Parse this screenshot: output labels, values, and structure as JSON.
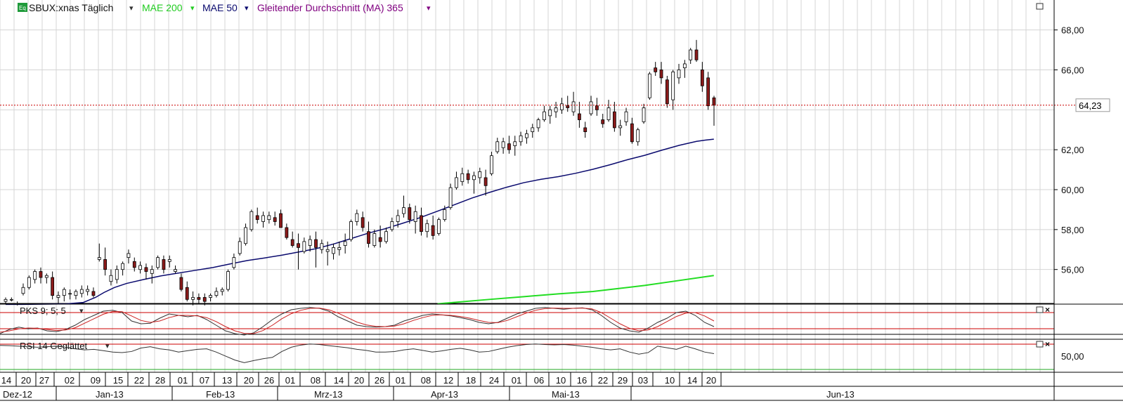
{
  "header": {
    "symbol_icon": "Eq",
    "symbol": "SBUX:xnas Täglich",
    "dropdown_icon": "▾",
    "ma200_label": "MAE 200",
    "ma50_label": "MAE 50",
    "ma365_label": "Gleitender Durchschnitt (MA) 365",
    "maximize_icon": "□"
  },
  "colors": {
    "background": "#ffffff",
    "grid": "#d4d4d4",
    "candle_up": "#ffffff",
    "candle_down": "#8b1a1a",
    "candle_wick": "#000000",
    "ma50": "#0a0a6e",
    "ma200": "#22dd22",
    "ma365_label": "#800080",
    "price_line": "#cc0000",
    "osc_black": "#333333",
    "osc_red": "#cc2222",
    "level_line": "#cc0000"
  },
  "price_label": "64,23",
  "y_axis_labels": [
    "68,00",
    "66,00",
    "62,00",
    "60,00",
    "58,00",
    "56,00"
  ],
  "pks_panel": {
    "title": "PKS 9; 5; 5",
    "dropdown_icon": "▾",
    "icons": [
      "□",
      "×"
    ]
  },
  "rsi_panel": {
    "title": "RSI 14 Geglättet",
    "dropdown_icon": "▾",
    "icons": [
      "□",
      "×"
    ],
    "label_50": "50,00"
  },
  "x_days": [
    "14",
    "20",
    "27",
    "02",
    "09",
    "15",
    "22",
    "28",
    "01",
    "07",
    "13",
    "20",
    "26",
    "01",
    "08",
    "14",
    "20",
    "26",
    "01",
    "08",
    "12",
    "18",
    "24",
    "01",
    "06",
    "10",
    "16",
    "22",
    "29",
    "03",
    "10",
    "14",
    "20"
  ],
  "x_months": [
    "Dez-12",
    "Jan-13",
    "Feb-13",
    "Mrz-13",
    "Apr-13",
    "Mai-13",
    "Jun-13"
  ],
  "chart_data": {
    "type": "candlestick",
    "symbol": "SBUX:xnas",
    "interval": "Täglich",
    "ylim": [
      54.3,
      69.5
    ],
    "last_price": 64.23,
    "candles": [
      [
        54.4,
        54.6,
        54.3,
        54.5
      ],
      [
        54.5,
        54.6,
        54.4,
        54.5
      ],
      [
        54.3,
        54.4,
        54.2,
        54.3
      ],
      [
        54.8,
        55.3,
        54.7,
        55.1
      ],
      [
        55.1,
        55.7,
        55.0,
        55.6
      ],
      [
        55.5,
        56.0,
        55.3,
        55.9
      ],
      [
        55.9,
        56.1,
        55.3,
        55.6
      ],
      [
        55.6,
        55.8,
        55.3,
        55.7
      ],
      [
        55.6,
        55.9,
        54.5,
        54.7
      ],
      [
        54.6,
        54.9,
        54.3,
        54.7
      ],
      [
        54.7,
        55.1,
        54.4,
        55.0
      ],
      [
        54.8,
        55.0,
        54.5,
        54.8
      ],
      [
        54.7,
        55.0,
        54.5,
        54.9
      ],
      [
        54.8,
        55.2,
        54.6,
        55.0
      ],
      [
        54.9,
        55.2,
        54.7,
        55.0
      ],
      [
        54.9,
        55.1,
        54.6,
        54.7
      ],
      [
        56.5,
        57.3,
        56.4,
        56.6
      ],
      [
        56.5,
        57.1,
        55.7,
        56.0
      ],
      [
        55.4,
        56.0,
        55.2,
        55.7
      ],
      [
        55.5,
        56.2,
        55.3,
        56.0
      ],
      [
        56.0,
        56.4,
        55.7,
        56.3
      ],
      [
        56.6,
        57.0,
        56.3,
        56.8
      ],
      [
        56.4,
        56.6,
        55.9,
        56.1
      ],
      [
        56.0,
        56.4,
        55.8,
        56.2
      ],
      [
        56.1,
        56.3,
        55.5,
        55.9
      ],
      [
        55.8,
        56.2,
        55.3,
        56.0
      ],
      [
        56.1,
        56.7,
        56.0,
        56.6
      ],
      [
        56.5,
        56.7,
        55.8,
        56.0
      ],
      [
        56.4,
        56.7,
        56.1,
        56.5
      ],
      [
        55.9,
        56.2,
        55.8,
        56.0
      ],
      [
        55.6,
        55.8,
        54.9,
        55.0
      ],
      [
        55.1,
        55.4,
        54.4,
        54.5
      ],
      [
        54.5,
        54.9,
        54.2,
        54.6
      ],
      [
        54.6,
        54.8,
        54.3,
        54.5
      ],
      [
        54.6,
        54.8,
        54.2,
        54.4
      ],
      [
        54.6,
        54.8,
        54.4,
        54.7
      ],
      [
        54.7,
        55.1,
        54.6,
        54.9
      ],
      [
        54.9,
        55.1,
        54.7,
        55.0
      ],
      [
        55.0,
        56.0,
        54.9,
        55.9
      ],
      [
        56.1,
        56.8,
        56.0,
        56.6
      ],
      [
        56.8,
        57.6,
        56.7,
        57.4
      ],
      [
        57.3,
        58.3,
        57.2,
        58.1
      ],
      [
        58.0,
        59.0,
        57.9,
        58.9
      ],
      [
        58.7,
        59.1,
        58.3,
        58.5
      ],
      [
        58.4,
        58.9,
        58.1,
        58.7
      ],
      [
        58.5,
        58.9,
        58.3,
        58.7
      ],
      [
        58.6,
        58.9,
        58.2,
        58.4
      ],
      [
        58.8,
        59.0,
        58.1,
        58.1
      ],
      [
        58.1,
        58.3,
        57.5,
        57.6
      ],
      [
        57.5,
        57.9,
        57.1,
        57.2
      ],
      [
        57.3,
        57.8,
        56.0,
        57.1
      ],
      [
        56.9,
        57.6,
        56.8,
        57.4
      ],
      [
        57.2,
        57.7,
        56.9,
        57.5
      ],
      [
        57.5,
        57.9,
        56.1,
        57.1
      ],
      [
        57.0,
        57.5,
        56.8,
        57.3
      ],
      [
        56.9,
        57.4,
        56.2,
        57.0
      ],
      [
        56.8,
        57.3,
        56.5,
        57.1
      ],
      [
        57.0,
        57.4,
        56.7,
        57.1
      ],
      [
        57.2,
        57.8,
        56.8,
        57.4
      ],
      [
        57.5,
        58.5,
        57.4,
        58.4
      ],
      [
        58.4,
        59.0,
        58.2,
        58.8
      ],
      [
        58.6,
        58.9,
        57.9,
        58.1
      ],
      [
        57.9,
        58.4,
        57.1,
        57.3
      ],
      [
        57.2,
        58.0,
        57.1,
        57.8
      ],
      [
        57.6,
        58.2,
        57.1,
        57.4
      ],
      [
        57.4,
        58.1,
        57.3,
        57.9
      ],
      [
        58.0,
        58.6,
        57.9,
        58.4
      ],
      [
        58.4,
        59.0,
        58.1,
        58.7
      ],
      [
        58.8,
        59.7,
        58.6,
        59.1
      ],
      [
        59.1,
        59.3,
        58.3,
        58.5
      ],
      [
        58.4,
        59.2,
        57.8,
        58.9
      ],
      [
        58.7,
        59.1,
        57.7,
        57.9
      ],
      [
        57.9,
        58.5,
        57.6,
        58.3
      ],
      [
        58.2,
        58.7,
        57.5,
        57.7
      ],
      [
        57.8,
        58.6,
        57.7,
        58.5
      ],
      [
        58.5,
        59.2,
        58.4,
        59.0
      ],
      [
        59.1,
        60.3,
        59.0,
        60.1
      ],
      [
        60.1,
        60.9,
        60.0,
        60.6
      ],
      [
        60.4,
        61.1,
        60.2,
        60.8
      ],
      [
        60.8,
        61.0,
        60.3,
        60.5
      ],
      [
        60.5,
        60.9,
        59.8,
        60.7
      ],
      [
        60.6,
        61.1,
        60.3,
        60.9
      ],
      [
        60.6,
        61.0,
        59.7,
        60.2
      ],
      [
        60.8,
        61.9,
        60.7,
        61.7
      ],
      [
        61.9,
        62.6,
        61.8,
        62.4
      ],
      [
        62.1,
        62.6,
        61.8,
        62.4
      ],
      [
        62.3,
        62.7,
        61.8,
        62.0
      ],
      [
        62.2,
        62.7,
        61.7,
        62.4
      ],
      [
        62.4,
        62.9,
        62.2,
        62.7
      ],
      [
        62.6,
        63.0,
        62.3,
        62.8
      ],
      [
        62.9,
        63.3,
        62.6,
        63.1
      ],
      [
        63.1,
        63.6,
        62.9,
        63.5
      ],
      [
        63.5,
        64.2,
        63.4,
        63.9
      ],
      [
        63.7,
        64.2,
        63.3,
        64.0
      ],
      [
        63.9,
        64.4,
        63.6,
        64.1
      ],
      [
        64.0,
        64.6,
        63.8,
        64.3
      ],
      [
        64.2,
        64.7,
        63.9,
        64.1
      ],
      [
        63.9,
        64.9,
        63.7,
        64.4
      ],
      [
        63.8,
        64.4,
        63.1,
        63.5
      ],
      [
        63.1,
        63.4,
        62.6,
        62.9
      ],
      [
        63.8,
        64.7,
        63.7,
        64.4
      ],
      [
        64.2,
        64.6,
        63.7,
        64.0
      ],
      [
        63.5,
        63.8,
        63.1,
        63.3
      ],
      [
        63.5,
        64.5,
        63.4,
        64.1
      ],
      [
        63.9,
        64.4,
        62.9,
        63.1
      ],
      [
        63.1,
        63.5,
        62.7,
        63.2
      ],
      [
        63.4,
        64.1,
        63.2,
        63.9
      ],
      [
        63.3,
        63.6,
        62.3,
        62.4
      ],
      [
        62.4,
        63.1,
        62.2,
        63.0
      ],
      [
        63.4,
        64.3,
        63.3,
        64.1
      ],
      [
        64.6,
        65.9,
        64.5,
        65.8
      ],
      [
        66.1,
        66.4,
        65.7,
        65.9
      ],
      [
        66.0,
        66.4,
        65.3,
        65.6
      ],
      [
        65.5,
        65.7,
        64.1,
        64.3
      ],
      [
        64.5,
        66.0,
        64.0,
        65.9
      ],
      [
        65.6,
        66.3,
        65.3,
        66.0
      ],
      [
        66.1,
        66.5,
        65.6,
        66.3
      ],
      [
        66.5,
        67.1,
        66.3,
        67.0
      ],
      [
        67.0,
        67.5,
        66.4,
        66.5
      ],
      [
        66.0,
        66.4,
        64.9,
        65.2
      ],
      [
        65.6,
        65.9,
        64.0,
        64.2
      ],
      [
        64.6,
        64.7,
        63.2,
        64.23
      ]
    ],
    "ma50": [
      [
        0,
        54.25
      ],
      [
        10,
        54.25
      ],
      [
        35,
        54.28
      ],
      [
        45,
        54.35
      ],
      [
        52,
        54.6
      ],
      [
        57,
        54.85
      ],
      [
        63,
        55.1
      ],
      [
        70,
        55.3
      ],
      [
        80,
        55.5
      ],
      [
        90,
        55.68
      ],
      [
        100,
        55.82
      ],
      [
        110,
        55.96
      ],
      [
        120,
        56.1
      ],
      [
        130,
        56.28
      ],
      [
        140,
        56.45
      ],
      [
        150,
        56.58
      ],
      [
        160,
        56.72
      ],
      [
        170,
        56.88
      ],
      [
        180,
        57.05
      ],
      [
        190,
        57.28
      ],
      [
        200,
        57.55
      ],
      [
        210,
        57.82
      ],
      [
        220,
        58.05
      ],
      [
        230,
        58.32
      ],
      [
        240,
        58.6
      ],
      [
        250,
        58.92
      ],
      [
        260,
        59.25
      ],
      [
        270,
        59.58
      ],
      [
        280,
        59.86
      ],
      [
        290,
        60.12
      ],
      [
        300,
        60.35
      ],
      [
        310,
        60.52
      ],
      [
        320,
        60.65
      ],
      [
        330,
        60.82
      ],
      [
        340,
        61.02
      ],
      [
        350,
        61.25
      ],
      [
        360,
        61.5
      ],
      [
        370,
        61.72
      ],
      [
        380,
        61.98
      ],
      [
        390,
        62.22
      ],
      [
        400,
        62.42
      ],
      [
        405,
        62.48
      ],
      [
        410,
        62.53
      ]
    ],
    "ma200": [
      [
        250,
        54.28
      ],
      [
        280,
        54.5
      ],
      [
        300,
        54.64
      ],
      [
        320,
        54.78
      ],
      [
        340,
        54.9
      ],
      [
        350,
        55.0
      ],
      [
        370,
        55.2
      ],
      [
        390,
        55.45
      ],
      [
        410,
        55.7
      ]
    ]
  },
  "pks_data": {
    "black": [
      0.05,
      0.2,
      0.28,
      0.22,
      0.25,
      0.15,
      0.12,
      0.2,
      0.35,
      0.55,
      0.7,
      0.85,
      0.88,
      0.8,
      0.5,
      0.4,
      0.42,
      0.6,
      0.75,
      0.7,
      0.65,
      0.7,
      0.55,
      0.35,
      0.15,
      0.05,
      0.0,
      0.08,
      0.3,
      0.55,
      0.75,
      0.9,
      0.95,
      0.98,
      0.95,
      0.85,
      0.65,
      0.5,
      0.35,
      0.3,
      0.28,
      0.3,
      0.35,
      0.5,
      0.6,
      0.7,
      0.75,
      0.72,
      0.68,
      0.62,
      0.55,
      0.45,
      0.4,
      0.45,
      0.6,
      0.75,
      0.85,
      0.95,
      0.98,
      0.95,
      0.92,
      0.95,
      0.97,
      0.9,
      0.7,
      0.45,
      0.25,
      0.15,
      0.1,
      0.25,
      0.45,
      0.6,
      0.8,
      0.85,
      0.7,
      0.45,
      0.3
    ],
    "red": [
      0.1,
      0.15,
      0.22,
      0.25,
      0.24,
      0.2,
      0.16,
      0.18,
      0.26,
      0.42,
      0.58,
      0.74,
      0.84,
      0.83,
      0.68,
      0.52,
      0.45,
      0.5,
      0.62,
      0.7,
      0.7,
      0.68,
      0.62,
      0.48,
      0.3,
      0.15,
      0.06,
      0.05,
      0.16,
      0.35,
      0.58,
      0.76,
      0.88,
      0.95,
      0.96,
      0.9,
      0.78,
      0.62,
      0.46,
      0.36,
      0.31,
      0.3,
      0.32,
      0.4,
      0.52,
      0.62,
      0.7,
      0.72,
      0.7,
      0.66,
      0.6,
      0.52,
      0.45,
      0.44,
      0.52,
      0.65,
      0.78,
      0.88,
      0.94,
      0.96,
      0.95,
      0.95,
      0.96,
      0.93,
      0.8,
      0.6,
      0.4,
      0.24,
      0.15,
      0.18,
      0.3,
      0.48,
      0.66,
      0.78,
      0.8,
      0.68,
      0.5
    ]
  },
  "rsi_data": [
    0.85,
    0.84,
    0.82,
    0.8,
    0.78,
    0.8,
    0.82,
    0.78,
    0.72,
    0.68,
    0.7,
    0.65,
    0.6,
    0.58,
    0.62,
    0.75,
    0.8,
    0.72,
    0.68,
    0.6,
    0.65,
    0.7,
    0.72,
    0.6,
    0.45,
    0.3,
    0.2,
    0.28,
    0.35,
    0.4,
    0.62,
    0.78,
    0.86,
    0.9,
    0.88,
    0.84,
    0.8,
    0.76,
    0.7,
    0.66,
    0.6,
    0.6,
    0.62,
    0.68,
    0.72,
    0.66,
    0.6,
    0.64,
    0.7,
    0.74,
    0.68,
    0.6,
    0.62,
    0.7,
    0.78,
    0.84,
    0.88,
    0.9,
    0.88,
    0.87,
    0.88,
    0.86,
    0.82,
    0.78,
    0.72,
    0.68,
    0.72,
    0.6,
    0.52,
    0.58,
    0.82,
    0.76,
    0.7,
    0.82,
    0.72,
    0.6,
    0.54
  ]
}
